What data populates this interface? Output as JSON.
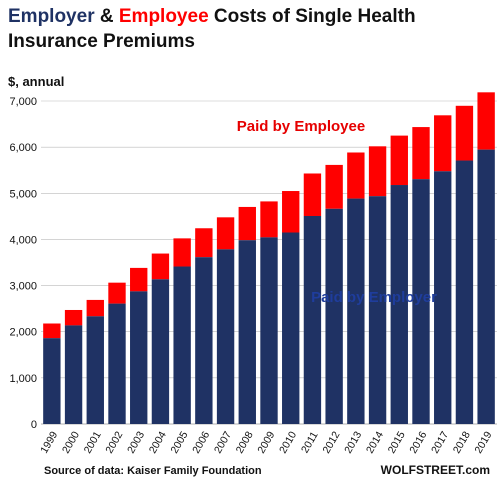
{
  "title": {
    "part1": "Employer",
    "part2": " & ",
    "part3": "Employee",
    "part4": " Costs of Single Health",
    "line2": "Insurance Premiums"
  },
  "colors": {
    "employer": "#1f3264",
    "employee": "#ff0000",
    "employer_text": "#1f3d9c",
    "employee_text": "#e60000"
  },
  "source": "Source of data: Kaiser Family Foundation",
  "brand": "WOLFSTREET.com",
  "chart_data": {
    "type": "bar",
    "stacked": true,
    "ylabel": "$, annual",
    "ylim": [
      0,
      7000
    ],
    "yticks": [
      0,
      1000,
      2000,
      3000,
      4000,
      5000,
      6000,
      7000
    ],
    "ytick_labels": [
      "0",
      "1,000",
      "2,000",
      "3,000",
      "4,000",
      "5,000",
      "6,000",
      "7,000"
    ],
    "categories": [
      "1999",
      "2000",
      "2001",
      "2002",
      "2003",
      "2004",
      "2005",
      "2006",
      "2007",
      "2008",
      "2009",
      "2010",
      "2011",
      "2012",
      "2013",
      "2014",
      "2015",
      "2016",
      "2017",
      "2018",
      "2019"
    ],
    "series": [
      {
        "name": "Paid by Employer",
        "values": [
          1860,
          2137,
          2334,
          2609,
          2875,
          3136,
          3413,
          3615,
          3785,
          3983,
          4045,
          4150,
          4508,
          4664,
          4885,
          4937,
          5179,
          5306,
          5477,
          5710,
          5946
        ]
      },
      {
        "name": "Paid by Employee",
        "values": [
          318,
          334,
          355,
          454,
          508,
          558,
          610,
          627,
          694,
          721,
          779,
          899,
          921,
          951,
          999,
          1081,
          1071,
          1129,
          1213,
          1186,
          1242
        ]
      }
    ]
  }
}
